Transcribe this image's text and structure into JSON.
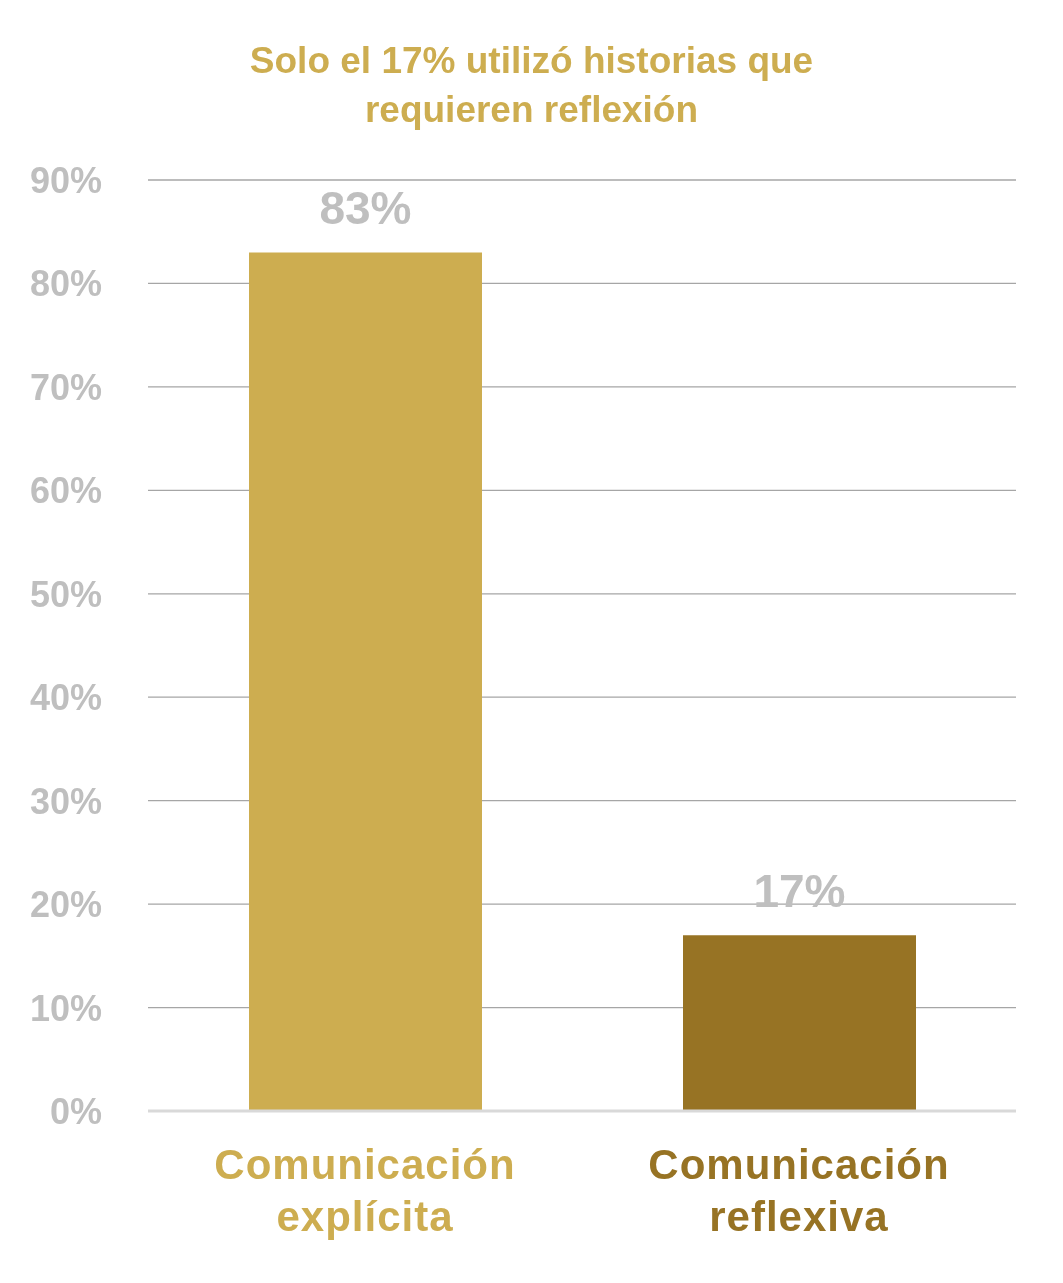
{
  "chart_data": {
    "type": "bar",
    "title": "Solo el 17% utilizó historias que requieren reflexión",
    "categories": [
      "Comunicación explícita",
      "Comunicación reflexiva"
    ],
    "values": [
      83,
      17
    ],
    "colors": [
      "#cdad50",
      "#977324"
    ],
    "value_labels": [
      "83%",
      "17%"
    ],
    "ylim": [
      0,
      90
    ],
    "yticks": [
      {
        "value": 0,
        "label": "0%"
      },
      {
        "value": 10,
        "label": "10%"
      },
      {
        "value": 20,
        "label": "20%"
      },
      {
        "value": 30,
        "label": "30%"
      },
      {
        "value": 40,
        "label": "40%"
      },
      {
        "value": 50,
        "label": "50%"
      },
      {
        "value": 60,
        "label": "60%"
      },
      {
        "value": 70,
        "label": "70%"
      },
      {
        "value": 80,
        "label": "80%"
      },
      {
        "value": 90,
        "label": "90%"
      }
    ],
    "grid": "y",
    "legend": false
  }
}
